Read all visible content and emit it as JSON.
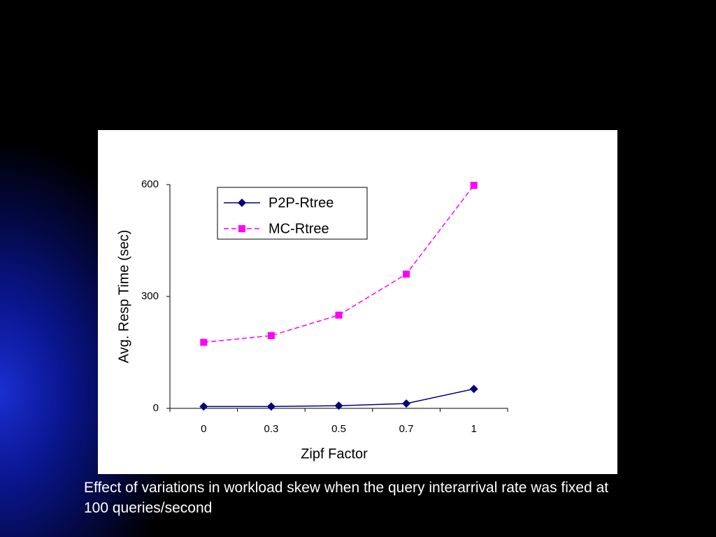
{
  "chart_data": {
    "type": "line",
    "x_label": "Zipf Factor",
    "y_label": "Avg. Resp Time (sec)",
    "categories": [
      "0",
      "0.3",
      "0.5",
      "0.7",
      "1"
    ],
    "series": [
      {
        "name": "P2P-Rtree",
        "color": "#000080",
        "marker": "diamond",
        "dashed": false,
        "values": [
          5,
          5,
          7,
          13,
          52
        ]
      },
      {
        "name": "MC-Rtree",
        "color": "#ff00ff",
        "marker": "square",
        "dashed": true,
        "values": [
          177,
          195,
          250,
          360,
          598
        ]
      }
    ],
    "ylim": [
      0,
      600
    ],
    "yticks": [
      0,
      300,
      600
    ],
    "grid": false,
    "legend": "top-left"
  },
  "caption": "Effect of variations in workload skew when the query interarrival rate was fixed at 100 queries/second"
}
